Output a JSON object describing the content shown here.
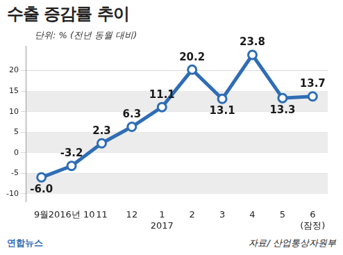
{
  "chart_data": {
    "type": "line",
    "title": "수출 증감률 추이",
    "subtitle": "단위: % (전년 동월 대비)",
    "categories": [
      "9월",
      "2016년 10",
      "11",
      "12",
      "1\n2017",
      "2",
      "3",
      "4",
      "5",
      "6\n(잠정)"
    ],
    "values": [
      -6.0,
      -3.2,
      2.3,
      6.3,
      11.1,
      20.2,
      13.1,
      23.8,
      13.3,
      13.7
    ],
    "value_labels": [
      "-6.0",
      "-3.2",
      "2.3",
      "6.3",
      "11.1",
      "20.2",
      "13.1",
      "23.8",
      "13.3",
      "13.7"
    ],
    "color": "#2f6db5",
    "marker": "circle",
    "line_style": "solid",
    "data_labels": true,
    "grid": true,
    "ylim": [
      -12,
      26
    ],
    "yticks": [
      -10,
      -5,
      0,
      5,
      10,
      15,
      20
    ],
    "source": "자료/ 산업통상자원부",
    "credit": "연합뉴스"
  }
}
